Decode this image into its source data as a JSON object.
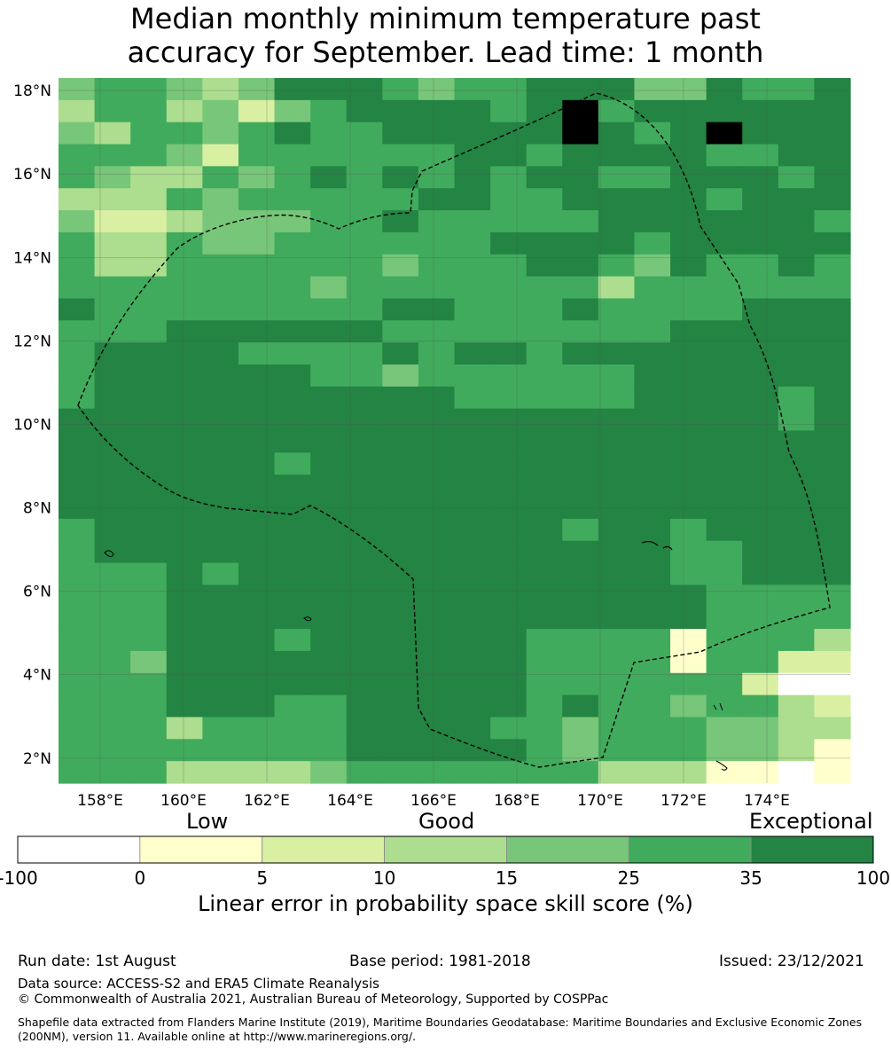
{
  "title_line1": "Median monthly minimum temperature past",
  "title_line2": "accuracy for September. Lead time: 1 month",
  "map": {
    "lon_range": [
      157.0,
      176.0
    ],
    "lat_range": [
      1.4,
      18.3
    ],
    "lon_ticks": [
      "158°E",
      "160°E",
      "162°E",
      "164°E",
      "166°E",
      "168°E",
      "170°E",
      "172°E",
      "174°E"
    ],
    "lat_ticks": [
      "18°N",
      "16°N",
      "14°N",
      "12°N",
      "10°N",
      "8°N",
      "6°N",
      "4°N",
      "2°N"
    ],
    "grid": true,
    "skill_class_grid": [
      "4554346665455666446556",
      "3553424566665675666666",
      "4355456556666676567666",
      "5554255555566566665566",
      "5433545656565665566656",
      "3335455555665566665666",
      "4223444556555556666665",
      "5335445555556666566666",
      "5335555554555665465565",
      "5555555455555553555555",
      "6555555556655565555666",
      "5556666665555555566666",
      "5666655556566566666666",
      "5666666554555555666666",
      "5666666666655555666656",
      "6666666666666666666656",
      "6666666666666666666666",
      "6666665666666666666666",
      "6666666666666666666666",
      "6666666666666666666666",
      "5666666666666656656666",
      "5666666666666666655666",
      "5556566666666666655666",
      "5556666666666666665555",
      "5556666666666666665555",
      "5556665666666555515553",
      "5546666666666555515522",
      "5556666666666555555200",
      "5556665566666565545532",
      "5553555566665545554433",
      "5555555566666545554431",
      "5553333455555553331101"
    ]
  },
  "legend": {
    "low": "Low",
    "good": "Good",
    "exceptional": "Exceptional",
    "bins": [
      "-100",
      "0",
      "5",
      "10",
      "15",
      "25",
      "35",
      "100"
    ],
    "colors": [
      "#ffffff",
      "#ffffcc",
      "#d9f0a3",
      "#addd8e",
      "#78c679",
      "#41ab5d",
      "#238443"
    ],
    "title": "Linear error in probability space skill score (%)"
  },
  "footer": {
    "run_date": "Run date: 1st August",
    "base_period": "Base period: 1981-2018",
    "issued": "Issued: 23/12/2021",
    "data_source": "Data source: ACCESS-S2 and ERA5 Climate Reanalysis",
    "copyright": "© Commonwealth of Australia 2021, Australian Bureau of Meteorology, Supported by COSPPac",
    "shapefile": "Shapefile data extracted from Flanders Marine Institute (2019), Maritime Boundaries Geodatabase: Maritime Boundaries and Exclusive Economic Zones (200NM), version 11. Available online at http://www.marineregions.org/."
  }
}
